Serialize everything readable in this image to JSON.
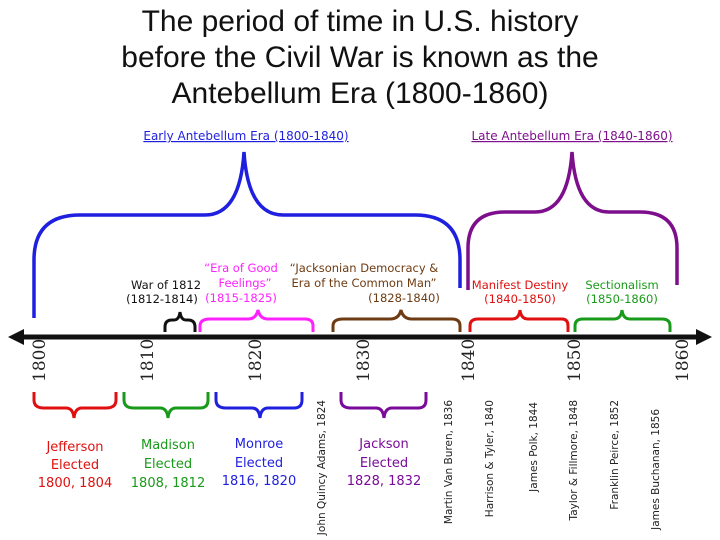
{
  "title": {
    "line1": "The period of time in U.S. history",
    "line2": "before the Civil War is known as the",
    "line3": "Antebellum Era (1800-1860)"
  },
  "eras": {
    "early": "Early Antebellum Era (1800-1840)",
    "late": "Late Antebellum Era (1840-1860)"
  },
  "periods": {
    "war1812": {
      "line1": "War of 1812",
      "line2": "(1812-1814)"
    },
    "good_feelings": {
      "line1": "“Era of Good",
      "line2": "Feelings”",
      "line3": "(1815-1825)"
    },
    "jacksonian": {
      "line1": "“Jacksonian Democracy &",
      "line2": "Era of the Common Man”",
      "line3": "(1828-1840)"
    },
    "manifest": {
      "line1": "Manifest Destiny",
      "line2": "(1840-1850)"
    },
    "sectionalism": {
      "line1": "Sectionalism",
      "line2": "(1850-1860)"
    }
  },
  "years": [
    "1800",
    "1810",
    "1820",
    "1830",
    "1840",
    "1850",
    "1860"
  ],
  "elections": {
    "jefferson": {
      "line1": "Jefferson",
      "line2": "Elected",
      "line3": "1800, 1804"
    },
    "madison": {
      "line1": "Madison",
      "line2": "Elected",
      "line3": "1808, 1812"
    },
    "monroe": {
      "line1": "Monroe",
      "line2": "Elected",
      "line3": "1816, 1820"
    },
    "jackson": {
      "line1": "Jackson",
      "line2": "Elected",
      "line3": "1828, 1832"
    }
  },
  "presidents": [
    "John Quincy Adams, 1824",
    "Martin Van Buren, 1836",
    "Harrison & Tyler, 1840",
    "James Polk, 1844",
    "Taylor & Fillmore, 1848",
    "Franklin Peirce, 1852",
    "James Buchanan, 1856"
  ],
  "colors": {
    "blue": "#1f1fe0",
    "purple": "#7e0f8c",
    "magenta": "#ff22ff",
    "brown": "#6e3b12",
    "red": "#e01010",
    "green": "#1a9a1a",
    "darkpurple": "#7a0a9a",
    "black": "#111111"
  }
}
